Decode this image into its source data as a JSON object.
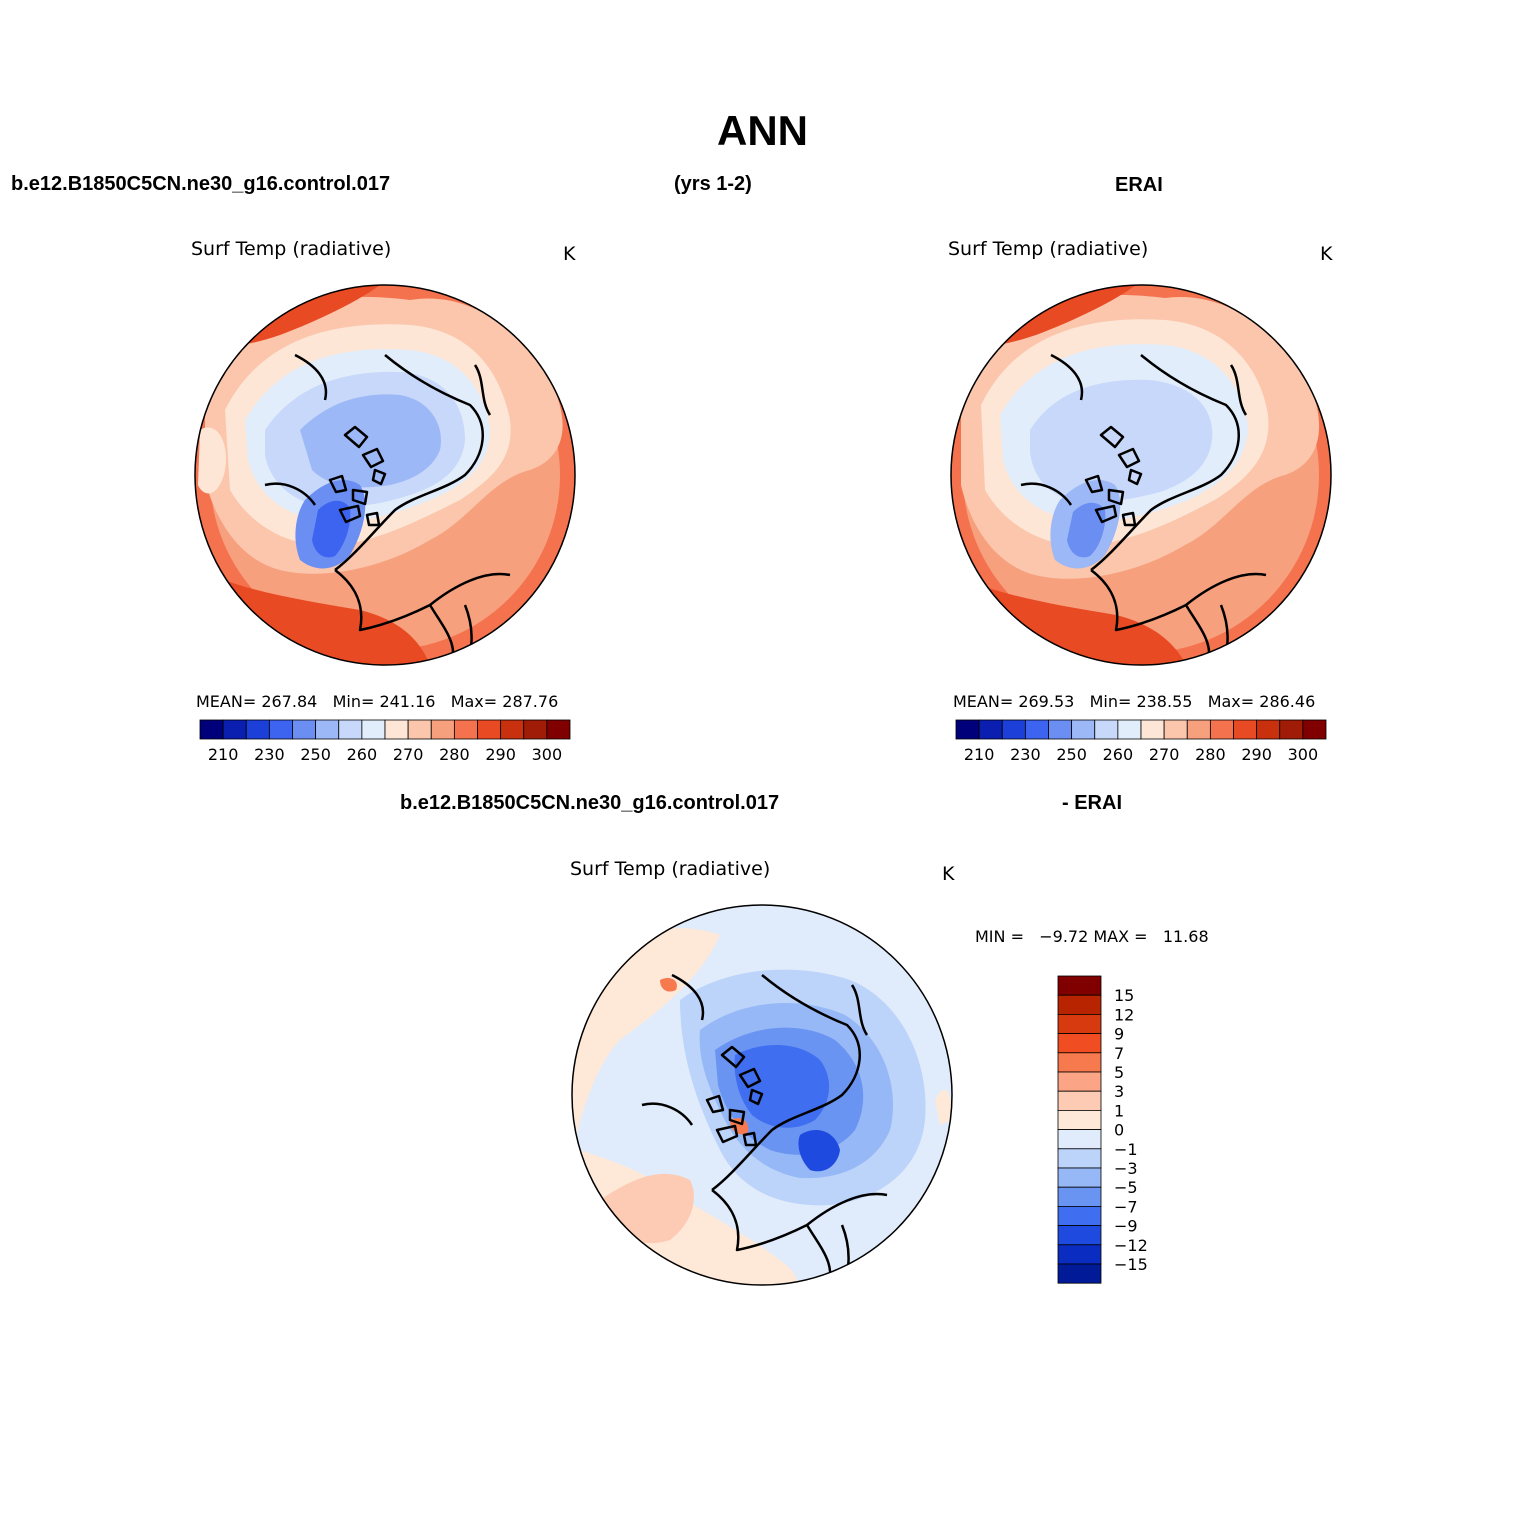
{
  "header": {
    "title": "ANN",
    "case_name": "b.e12.B1850C5CN.ne30_g16.control.017",
    "years": "(yrs 1-2)",
    "reference": "ERAI",
    "diff_case": "b.e12.B1850C5CN.ne30_g16.control.017",
    "diff_ref": "- ERAI"
  },
  "panels": [
    {
      "title": "Surf Temp (radiative)",
      "units": "K",
      "stats": "MEAN= 267.84   Min= 241.16   Max= 287.76"
    },
    {
      "title": "Surf Temp (radiative)",
      "units": "K",
      "stats": "MEAN= 269.53   Min= 238.55   Max= 286.46"
    },
    {
      "title": "Surf Temp (radiative)",
      "units": "K",
      "stats": "MIN =   −9.72 MAX =   11.68"
    }
  ],
  "colorbar_abs": {
    "tick_labels": [
      "210",
      "230",
      "250",
      "260",
      "270",
      "280",
      "290",
      "300"
    ],
    "colors": [
      "#00007a",
      "#0a1fb0",
      "#1b3fd8",
      "#3d64f0",
      "#6b8ef2",
      "#9db8f6",
      "#c7d8fa",
      "#e2edfb",
      "#fde6d6",
      "#fbc6ac",
      "#f7a07e",
      "#f4724e",
      "#e84a24",
      "#c9300e",
      "#a11c06",
      "#800000"
    ]
  },
  "colorbar_diff": {
    "tick_labels": [
      "15",
      "12",
      "9",
      "7",
      "5",
      "3",
      "1",
      "0",
      "−1",
      "−3",
      "−5",
      "−7",
      "−9",
      "−12",
      "−15"
    ],
    "colors": [
      "#800000",
      "#b82400",
      "#d83a10",
      "#f04e22",
      "#f77a4e",
      "#fba486",
      "#fdcbb4",
      "#fee8d8",
      "#e0ecfb",
      "#bcd3fa",
      "#96b8f6",
      "#6a94f2",
      "#3f6ef0",
      "#1f4ae0",
      "#0a2cc0",
      "#001a98"
    ]
  }
}
